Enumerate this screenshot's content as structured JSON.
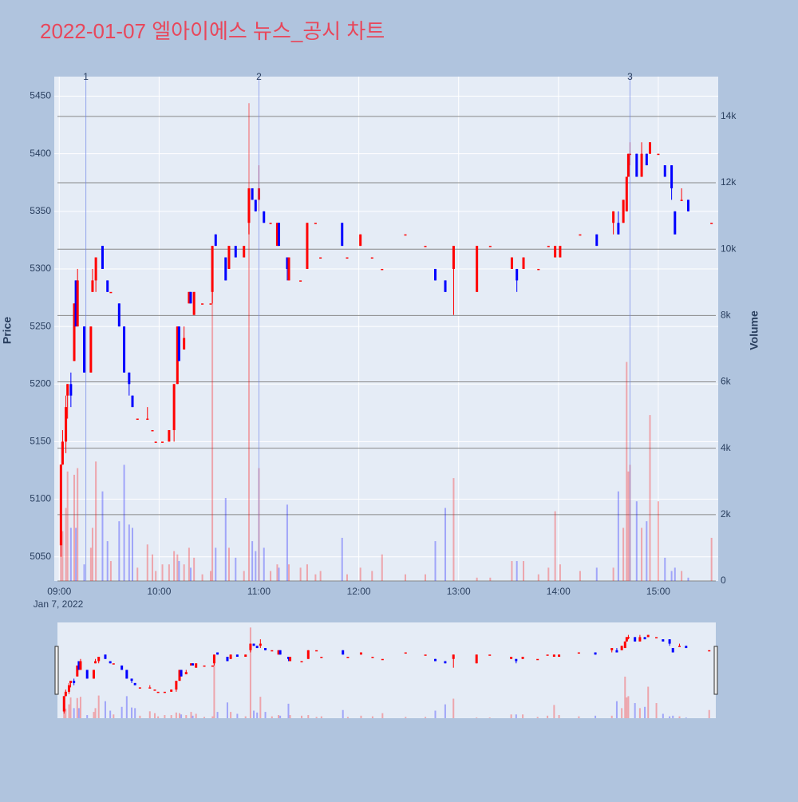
{
  "chart_data": {
    "type": "candlestick",
    "title": "2022-01-07 엘아이에스 뉴스_공시 차트",
    "y_label": "Price",
    "y2_label": "Volume",
    "x_sublabel": "Jan 7, 2022",
    "increasing_color": "#ff0000",
    "decreasing_color": "#0000ff",
    "xlim": [
      "08:57",
      "15:36"
    ],
    "xticks": [
      "09:00",
      "10:00",
      "11:00",
      "12:00",
      "13:00",
      "14:00",
      "15:00"
    ],
    "ylim": [
      5029,
      5467
    ],
    "yticks": [
      5050,
      5100,
      5150,
      5200,
      5250,
      5300,
      5350,
      5400,
      5450
    ],
    "y2lim": [
      0,
      15200
    ],
    "y2ticks": [
      0,
      {
        "value": 2000,
        "label": "2k"
      },
      {
        "value": 4000,
        "label": "4k"
      },
      {
        "value": 6000,
        "label": "6k"
      },
      {
        "value": 8000,
        "label": "8k"
      },
      {
        "value": 10000,
        "label": "10k"
      },
      {
        "value": 12000,
        "label": "12k"
      },
      {
        "value": 14000,
        "label": "14k"
      }
    ],
    "annotations": [
      {
        "x": "09:16",
        "label": "1"
      },
      {
        "x": "11:00",
        "label": "2"
      },
      {
        "x": "14:43",
        "label": "3"
      }
    ],
    "x": [
      "09:01",
      "09:02",
      "09:04",
      "09:05",
      "09:07",
      "09:09",
      "09:10",
      "09:11",
      "09:15",
      "09:19",
      "09:20",
      "09:22",
      "09:26",
      "09:29",
      "09:31",
      "09:36",
      "09:39",
      "09:42",
      "09:44",
      "09:47",
      "09:53",
      "09:56",
      "09:58",
      "10:02",
      "10:06",
      "10:09",
      "10:11",
      "10:12",
      "10:15",
      "10:18",
      "10:19",
      "10:21",
      "10:26",
      "10:31",
      "10:32",
      "10:34",
      "10:40",
      "10:42",
      "10:46",
      "10:51",
      "10:54",
      "10:56",
      "10:58",
      "11:00",
      "11:03",
      "11:07",
      "11:11",
      "11:12",
      "11:17",
      "11:18",
      "11:25",
      "11:29",
      "11:34",
      "11:37",
      "11:50",
      "11:53",
      "12:01",
      "12:08",
      "12:14",
      "12:28",
      "12:40",
      "12:46",
      "12:52",
      "12:57",
      "13:11",
      "13:19",
      "13:32",
      "13:35",
      "13:39",
      "13:48",
      "13:54",
      "13:58",
      "14:01",
      "14:13",
      "14:23",
      "14:33",
      "14:36",
      "14:39",
      "14:41",
      "14:42",
      "14:43",
      "14:47",
      "14:50",
      "14:53",
      "14:55",
      "15:00",
      "15:04",
      "15:08",
      "15:10",
      "15:14",
      "15:18",
      "15:32"
    ],
    "open": [
      5060,
      5130,
      5150,
      5190,
      5200,
      5220,
      5290,
      5250,
      5250,
      5210,
      5280,
      5290,
      5320,
      5290,
      5280,
      5270,
      5250,
      5210,
      5190,
      5170,
      5170,
      5160,
      5150,
      5150,
      5150,
      5160,
      5200,
      5250,
      5230,
      5270,
      5280,
      5260,
      5270,
      5270,
      5280,
      5330,
      5310,
      5300,
      5320,
      5310,
      5340,
      5370,
      5360,
      5360,
      5350,
      5340,
      5320,
      5340,
      5310,
      5290,
      5290,
      5300,
      5340,
      5310,
      5340,
      5310,
      5320,
      5310,
      5300,
      5330,
      5320,
      5300,
      5290,
      5300,
      5280,
      5320,
      5300,
      5300,
      5300,
      5300,
      5320,
      5310,
      5310,
      5330,
      5330,
      5340,
      5340,
      5340,
      5350,
      5380,
      5400,
      5400,
      5380,
      5400,
      5400,
      5400,
      5390,
      5390,
      5350,
      5360,
      5360,
      5340
    ],
    "high": [
      5130,
      5160,
      5190,
      5200,
      5210,
      5270,
      5290,
      5300,
      5250,
      5250,
      5300,
      5310,
      5320,
      5290,
      5280,
      5270,
      5250,
      5210,
      5190,
      5170,
      5180,
      5160,
      5150,
      5150,
      5160,
      5200,
      5250,
      5250,
      5250,
      5280,
      5280,
      5280,
      5270,
      5270,
      5320,
      5330,
      5310,
      5320,
      5320,
      5320,
      5370,
      5370,
      5360,
      5390,
      5350,
      5340,
      5340,
      5340,
      5310,
      5310,
      5290,
      5340,
      5340,
      5310,
      5340,
      5310,
      5330,
      5310,
      5300,
      5330,
      5320,
      5300,
      5290,
      5320,
      5320,
      5320,
      5310,
      5300,
      5310,
      5300,
      5320,
      5320,
      5320,
      5330,
      5330,
      5350,
      5350,
      5360,
      5380,
      5400,
      5410,
      5400,
      5410,
      5400,
      5410,
      5400,
      5390,
      5390,
      5350,
      5370,
      5360,
      5340
    ],
    "low": [
      5050,
      5130,
      5140,
      5170,
      5180,
      5220,
      5250,
      5250,
      5210,
      5210,
      5280,
      5280,
      5300,
      5280,
      5280,
      5250,
      5210,
      5190,
      5180,
      5170,
      5170,
      5160,
      5150,
      5150,
      5150,
      5150,
      5200,
      5220,
      5230,
      5270,
      5270,
      5260,
      5270,
      5270,
      5270,
      5320,
      5290,
      5300,
      5310,
      5310,
      5330,
      5360,
      5350,
      5350,
      5340,
      5340,
      5320,
      5320,
      5290,
      5290,
      5290,
      5300,
      5340,
      5310,
      5320,
      5310,
      5320,
      5310,
      5300,
      5330,
      5320,
      5290,
      5280,
      5260,
      5280,
      5320,
      5300,
      5280,
      5300,
      5300,
      5320,
      5310,
      5310,
      5330,
      5320,
      5330,
      5330,
      5340,
      5350,
      5380,
      5390,
      5380,
      5380,
      5390,
      5400,
      5400,
      5380,
      5360,
      5330,
      5360,
      5350,
      5340
    ],
    "close": [
      5130,
      5150,
      5180,
      5200,
      5190,
      5270,
      5250,
      5290,
      5210,
      5250,
      5290,
      5310,
      5300,
      5280,
      5280,
      5250,
      5210,
      5200,
      5180,
      5170,
      5170,
      5160,
      5150,
      5150,
      5160,
      5200,
      5250,
      5220,
      5240,
      5280,
      5270,
      5280,
      5270,
      5270,
      5320,
      5320,
      5290,
      5320,
      5310,
      5320,
      5370,
      5360,
      5350,
      5370,
      5340,
      5340,
      5340,
      5320,
      5300,
      5310,
      5290,
      5340,
      5340,
      5310,
      5320,
      5310,
      5330,
      5310,
      5300,
      5330,
      5320,
      5290,
      5280,
      5320,
      5320,
      5320,
      5310,
      5290,
      5310,
      5300,
      5320,
      5320,
      5320,
      5330,
      5320,
      5350,
      5330,
      5360,
      5380,
      5400,
      5400,
      5380,
      5400,
      5390,
      5410,
      5400,
      5380,
      5370,
      5330,
      5360,
      5350,
      5340
    ],
    "volume": [
      1200,
      1500,
      2200,
      3300,
      1600,
      3200,
      1600,
      3400,
      500,
      1000,
      1600,
      3600,
      2700,
      1200,
      600,
      1800,
      3500,
      1700,
      1600,
      400,
      1100,
      800,
      300,
      500,
      500,
      900,
      800,
      600,
      500,
      1000,
      400,
      700,
      200,
      300,
      10000,
      1000,
      2500,
      1000,
      700,
      300,
      14400,
      1200,
      900,
      3400,
      1000,
      300,
      500,
      400,
      2300,
      500,
      400,
      500,
      200,
      300,
      1300,
      200,
      400,
      300,
      800,
      200,
      200,
      1200,
      2200,
      3100,
      100,
      100,
      600,
      600,
      600,
      200,
      400,
      2100,
      500,
      300,
      400,
      400,
      2700,
      1600,
      6600,
      3300,
      3500,
      2400,
      1600,
      1800,
      5000,
      2400,
      700,
      300,
      400,
      300,
      100,
      1300
    ]
  }
}
